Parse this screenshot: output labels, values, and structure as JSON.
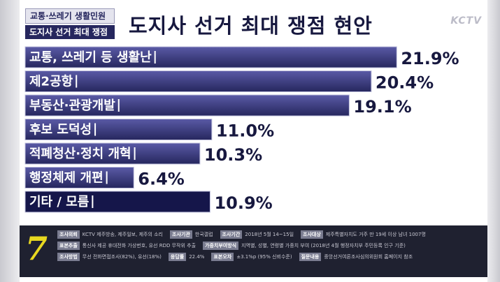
{
  "header": {
    "tag_line1": "교통·쓰레기 생활민원",
    "tag_line2": "도지사 선거 최대 쟁점",
    "headline": "도지사 선거 최대 쟁점 현안",
    "logo": "KCTV"
  },
  "chart_data": {
    "type": "bar",
    "orientation": "horizontal",
    "categories": [
      "교통, 쓰레기 등 생활난",
      "제2공항",
      "부동산·관광개발",
      "후보 도덕성",
      "적폐청산·정치 개혁",
      "행정체제 개편",
      "기타 / 모름"
    ],
    "values": [
      21.9,
      20.4,
      19.1,
      11.0,
      10.3,
      6.4,
      10.9
    ],
    "value_labels": [
      "21.9%",
      "20.4%",
      "19.1%",
      "11.0%",
      "10.3%",
      "6.4%",
      "10.9%"
    ],
    "title": "도지사 선거 최대 쟁점 현안",
    "xlim": [
      0,
      23
    ],
    "grid": false,
    "colors": {
      "bar_top": "#5a5aa6",
      "bar_bottom": "#26275e",
      "bar_last": "#15164a",
      "label": "#17183f"
    }
  },
  "footer": {
    "badge": "7",
    "notes": [
      [
        {
          "label": "조사의뢰",
          "value": "KCTV 제주방송, 제주일보, 제주의 소리"
        },
        {
          "label": "조사기관",
          "value": "한국갤럽"
        },
        {
          "label": "조사기간",
          "value": "2018년 5월 14~15일"
        },
        {
          "label": "조사대상",
          "value": "제주특별자치도 거주 만 19세 이상 남녀 1007명"
        }
      ],
      [
        {
          "label": "표본추출",
          "value": "통신사 제공 휴대전화 가상번호, 유선 RDD 무작위 추출"
        },
        {
          "label": "가중치부여방식",
          "value": "지역별, 성별, 연령별 가중치 부여 (2018년 4월 행정자치부 주민등록 인구 기준)"
        }
      ],
      [
        {
          "label": "조사방법",
          "value": "무선 전화면접조사(82%), 유선(18%)"
        },
        {
          "label": "응답률",
          "value": "22.4%"
        },
        {
          "label": "표본오차",
          "value": "±3.1%p (95% 신뢰수준)"
        },
        {
          "label": "질문내용",
          "value": "중앙선거여론조사심의위원회 홈페이지 참조"
        }
      ]
    ]
  }
}
